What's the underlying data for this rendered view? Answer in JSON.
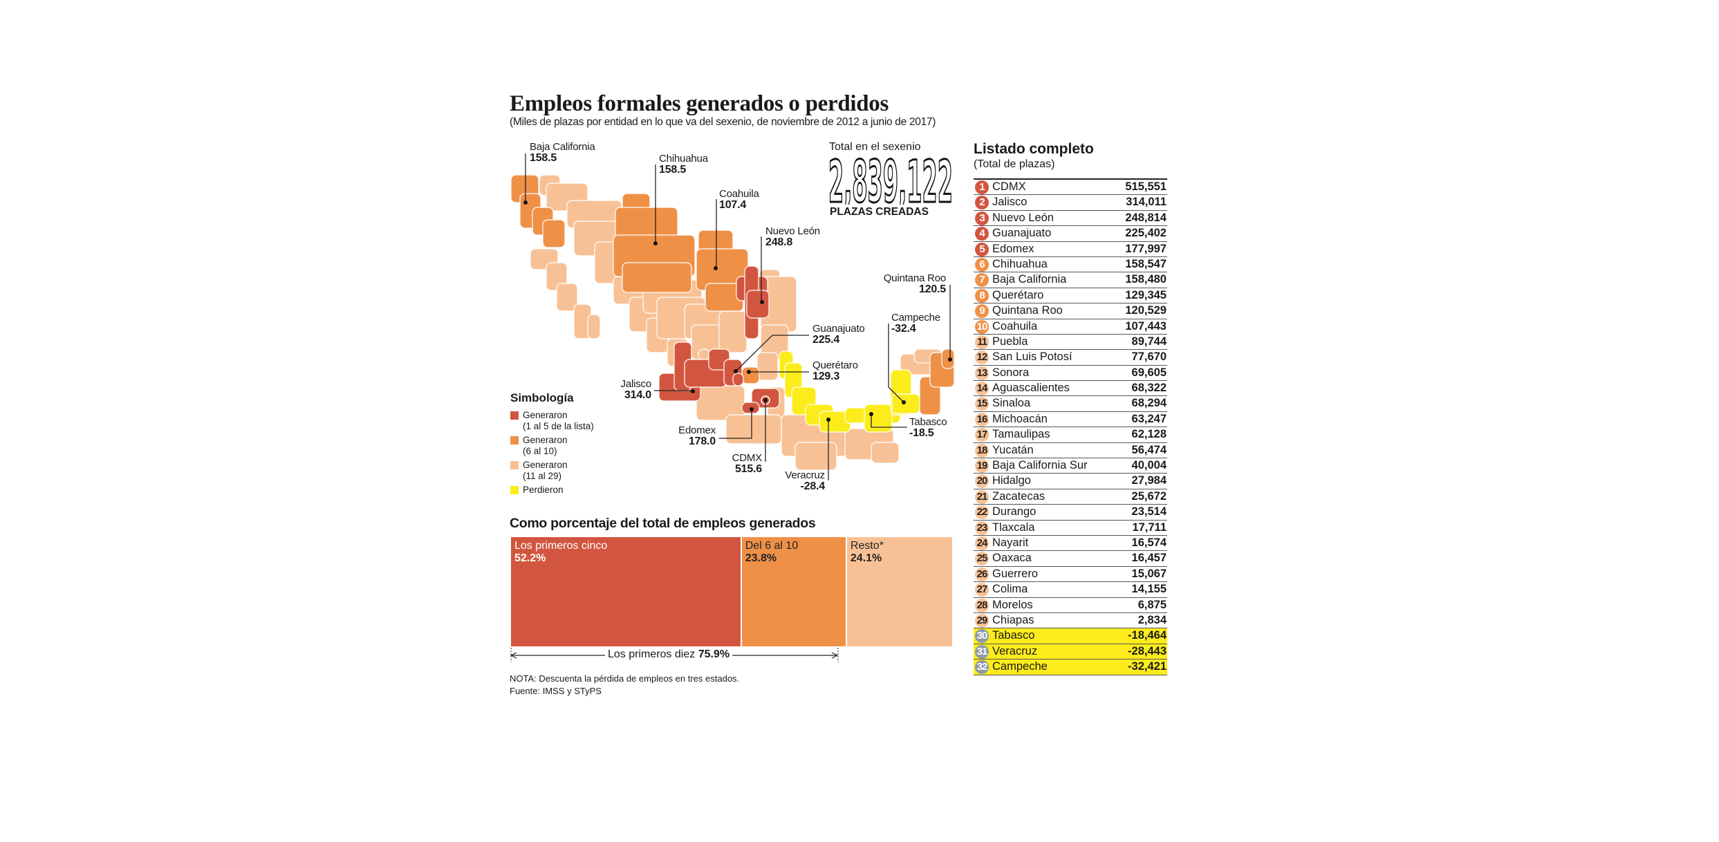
{
  "title": "Empleos formales generados o perdidos",
  "subtitle": "(Miles de plazas por entidad en lo que va del sexenio, de noviembre de 2012 a junio de 2017)",
  "colors": {
    "top5": "#d2563f",
    "top6_10": "#ef9047",
    "top11_29": "#f8c195",
    "lost": "#fcec1b",
    "lost_badge": "#8e9aa6"
  },
  "total": {
    "caption": "Total en el sexenio",
    "value": "2,839,122",
    "label": "PLAZAS CREADAS"
  },
  "map": {
    "labels": [
      {
        "name": "Baja California",
        "value": "158.5"
      },
      {
        "name": "Chihuahua",
        "value": "158.5"
      },
      {
        "name": "Coahuila",
        "value": "107.4"
      },
      {
        "name": "Nuevo León",
        "value": "248.8"
      },
      {
        "name": "Guanajuato",
        "value": "225.4"
      },
      {
        "name": "Querétaro",
        "value": "129.3"
      },
      {
        "name": "Jalisco",
        "value": "314.0"
      },
      {
        "name": "Edomex",
        "value": "178.0"
      },
      {
        "name": "CDMX",
        "value": "515.6"
      },
      {
        "name": "Veracruz",
        "value": "-28.4"
      },
      {
        "name": "Tabasco",
        "value": "-18.5"
      },
      {
        "name": "Campeche",
        "value": "-32.4"
      },
      {
        "name": "Quintana Roo",
        "value": "120.5"
      }
    ]
  },
  "legend": {
    "title": "Simbología",
    "items": [
      {
        "line1": "Generaron",
        "line2": "(1 al 5 de la lista)",
        "tier": "top5"
      },
      {
        "line1": "Generaron",
        "line2": "(6 al 10)",
        "tier": "top6_10"
      },
      {
        "line1": "Generaron",
        "line2": "(11 al 29)",
        "tier": "top11_29"
      },
      {
        "line1": "Perdieron",
        "line2": "",
        "tier": "lost"
      }
    ]
  },
  "table": {
    "title": "Listado completo",
    "subtitle": "(Total de plazas)",
    "rows": [
      {
        "rank": "1",
        "name": "CDMX",
        "value": "515,551"
      },
      {
        "rank": "2",
        "name": "Jalisco",
        "value": "314,011"
      },
      {
        "rank": "3",
        "name": "Nuevo León",
        "value": "248,814"
      },
      {
        "rank": "4",
        "name": "Guanajuato",
        "value": "225,402"
      },
      {
        "rank": "5",
        "name": "Edomex",
        "value": "177,997"
      },
      {
        "rank": "6",
        "name": "Chihuahua",
        "value": "158,547"
      },
      {
        "rank": "7",
        "name": "Baja California",
        "value": "158,480"
      },
      {
        "rank": "8",
        "name": "Querétaro",
        "value": "129,345"
      },
      {
        "rank": "9",
        "name": "Quintana Roo",
        "value": "120,529"
      },
      {
        "rank": "10",
        "name": "Coahuila",
        "value": "107,443"
      },
      {
        "rank": "11",
        "name": "Puebla",
        "value": "89,744"
      },
      {
        "rank": "12",
        "name": "San Luis Potosí",
        "value": "77,670"
      },
      {
        "rank": "13",
        "name": "Sonora",
        "value": "69,605"
      },
      {
        "rank": "14",
        "name": "Aguascalientes",
        "value": "68,322"
      },
      {
        "rank": "15",
        "name": "Sinaloa",
        "value": "68,294"
      },
      {
        "rank": "16",
        "name": "Michoacán",
        "value": "63,247"
      },
      {
        "rank": "17",
        "name": "Tamaulipas",
        "value": "62,128"
      },
      {
        "rank": "18",
        "name": "Yucatán",
        "value": "56,474"
      },
      {
        "rank": "19",
        "name": "Baja California Sur",
        "value": "40,004"
      },
      {
        "rank": "20",
        "name": "Hidalgo",
        "value": "27,984"
      },
      {
        "rank": "21",
        "name": "Zacatecas",
        "value": "25,672"
      },
      {
        "rank": "22",
        "name": "Durango",
        "value": "23,514"
      },
      {
        "rank": "23",
        "name": "Tlaxcala",
        "value": "17,711"
      },
      {
        "rank": "24",
        "name": "Nayarit",
        "value": "16,574"
      },
      {
        "rank": "25",
        "name": "Oaxaca",
        "value": "16,457"
      },
      {
        "rank": "26",
        "name": "Guerrero",
        "value": "15,067"
      },
      {
        "rank": "27",
        "name": "Colima",
        "value": "14,155"
      },
      {
        "rank": "28",
        "name": "Morelos",
        "value": "6,875"
      },
      {
        "rank": "29",
        "name": "Chiapas",
        "value": "2,834"
      },
      {
        "rank": "30",
        "name": "Tabasco",
        "value": "-18,464"
      },
      {
        "rank": "31",
        "name": "Veracruz",
        "value": "-28,443"
      },
      {
        "rank": "32",
        "name": "Campeche",
        "value": "-32,421"
      }
    ]
  },
  "chart_data": {
    "type": "bar",
    "title": "Como porcentaje del total de empleos generados",
    "orientation": "stacked-horizontal",
    "categories": [
      "Los primeros cinco",
      "Del 6 al 10",
      "Resto*"
    ],
    "values": [
      52.2,
      23.8,
      24.1
    ],
    "labels": [
      "52.2%",
      "23.8%",
      "24.1%"
    ],
    "unit": "%",
    "bracket": {
      "label": "Los primeros diez",
      "value": "75.9%"
    }
  },
  "footer": {
    "note": "NOTA: Descuenta la pérdida de empleos en tres estados.",
    "source": "Fuente: IMSS y STyPS"
  }
}
